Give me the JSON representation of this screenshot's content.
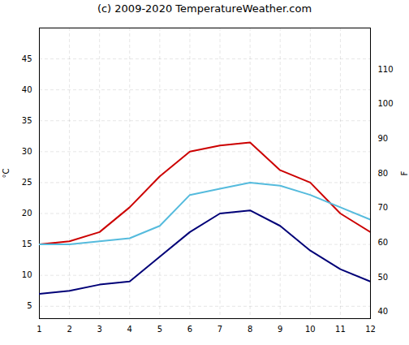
{
  "chart_data": {
    "type": "line",
    "title": "(c) 2009-2020 TemperatureWeather.com",
    "x": [
      1,
      2,
      3,
      4,
      5,
      6,
      7,
      8,
      9,
      10,
      11,
      12
    ],
    "xlim": [
      1,
      12
    ],
    "xticks": [
      1,
      2,
      3,
      4,
      5,
      6,
      7,
      8,
      9,
      10,
      11,
      12
    ],
    "ylabel": "°C",
    "ylim": [
      3,
      50
    ],
    "yticks": [
      5,
      10,
      15,
      20,
      25,
      30,
      35,
      40,
      45
    ],
    "y2label": "F",
    "y2lim": [
      38,
      122
    ],
    "y2ticks": [
      40,
      50,
      60,
      70,
      80,
      90,
      100,
      110
    ],
    "grid": true,
    "series": [
      {
        "color": "#cc0000",
        "values": [
          15,
          15.5,
          17,
          21,
          26,
          30,
          31,
          31.5,
          27,
          25,
          20,
          17
        ]
      },
      {
        "color": "#55bbdd",
        "values": [
          15,
          15,
          15.5,
          16,
          18,
          23,
          24,
          25,
          24.5,
          23,
          21,
          19
        ]
      },
      {
        "color": "#000077",
        "values": [
          7,
          7.5,
          8.5,
          9,
          13,
          17,
          20,
          20.5,
          18,
          14,
          11,
          9
        ]
      }
    ]
  }
}
